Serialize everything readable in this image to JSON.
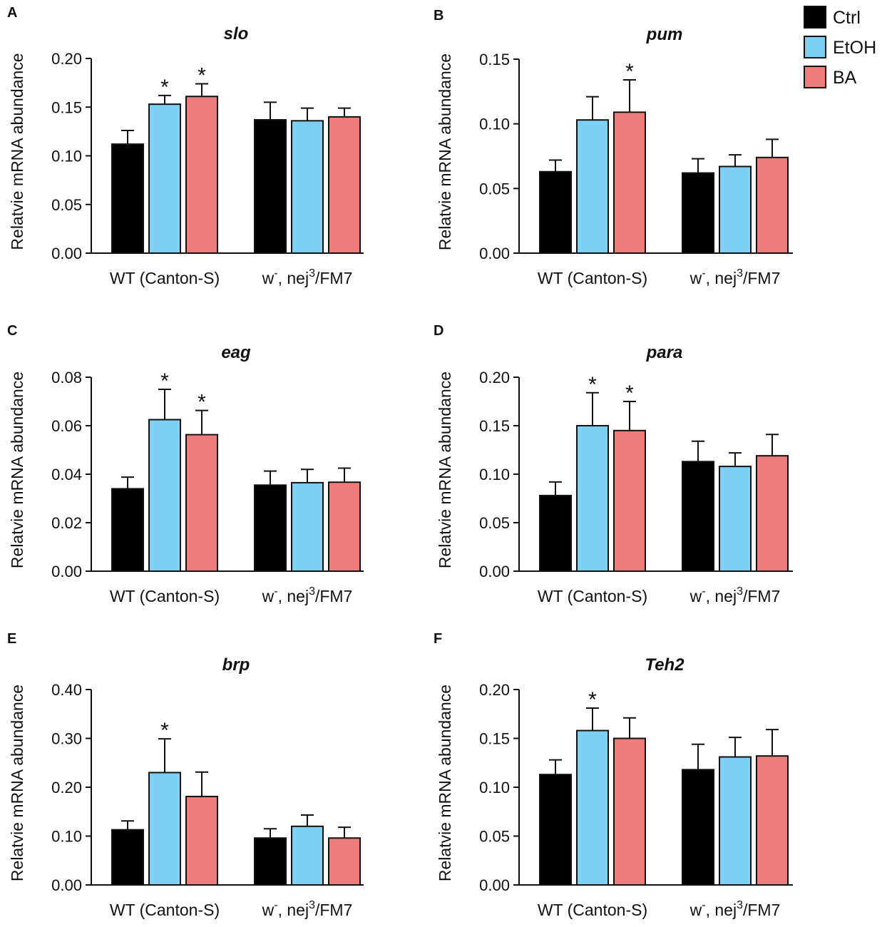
{
  "colors": {
    "Ctrl": "#000000",
    "EtOH": "#7dd0f4",
    "BA": "#f07b7b"
  },
  "legend": [
    {
      "label": "Ctrl",
      "color": "#000000"
    },
    {
      "label": "EtOH",
      "color": "#7dd0f4"
    },
    {
      "label": "BA",
      "color": "#f07b7b"
    }
  ],
  "chart_data": [
    {
      "panel": "A",
      "type": "bar",
      "title": "slo",
      "ylabel": "Relatvie mRNA abundance",
      "ylim": [
        0,
        0.2
      ],
      "yticks": [
        "0.00",
        "0.05",
        "0.10",
        "0.15",
        "0.20"
      ],
      "groups": [
        "WT (Canton-S)",
        "w-, nej3/FM7"
      ],
      "series": [
        {
          "name": "Ctrl",
          "values": [
            0.112,
            0.137
          ],
          "errors": [
            0.014,
            0.018
          ],
          "sig": [
            "",
            ""
          ]
        },
        {
          "name": "EtOH",
          "values": [
            0.153,
            0.136
          ],
          "errors": [
            0.009,
            0.013
          ],
          "sig": [
            "*",
            ""
          ]
        },
        {
          "name": "BA",
          "values": [
            0.161,
            0.14
          ],
          "errors": [
            0.013,
            0.009
          ],
          "sig": [
            "*",
            ""
          ]
        }
      ]
    },
    {
      "panel": "B",
      "type": "bar",
      "title": "pum",
      "ylabel": "Relatvie mRNA abundance",
      "ylim": [
        0,
        0.15
      ],
      "yticks": [
        "0.00",
        "0.05",
        "0.10",
        "0.15"
      ],
      "groups": [
        "WT (Canton-S)",
        "w-, nej3/FM7"
      ],
      "series": [
        {
          "name": "Ctrl",
          "values": [
            0.063,
            0.062
          ],
          "errors": [
            0.009,
            0.011
          ],
          "sig": [
            "",
            ""
          ]
        },
        {
          "name": "EtOH",
          "values": [
            0.103,
            0.067
          ],
          "errors": [
            0.018,
            0.009
          ],
          "sig": [
            "",
            ""
          ]
        },
        {
          "name": "BA",
          "values": [
            0.109,
            0.074
          ],
          "errors": [
            0.025,
            0.014
          ],
          "sig": [
            "*",
            ""
          ]
        }
      ]
    },
    {
      "panel": "C",
      "type": "bar",
      "title": "eag",
      "ylabel": "Relatvie mRNA abundance",
      "ylim": [
        0,
        0.08
      ],
      "yticks": [
        "0.00",
        "0.02",
        "0.04",
        "0.06",
        "0.08"
      ],
      "groups": [
        "WT (Canton-S)",
        "w-, nej3/FM7"
      ],
      "series": [
        {
          "name": "Ctrl",
          "values": [
            0.034,
            0.0355
          ],
          "errors": [
            0.0048,
            0.0058
          ],
          "sig": [
            "",
            ""
          ]
        },
        {
          "name": "EtOH",
          "values": [
            0.0625,
            0.0365
          ],
          "errors": [
            0.0125,
            0.0055
          ],
          "sig": [
            "*",
            ""
          ]
        },
        {
          "name": "BA",
          "values": [
            0.0563,
            0.0367
          ],
          "errors": [
            0.01,
            0.0058
          ],
          "sig": [
            "*",
            ""
          ]
        }
      ]
    },
    {
      "panel": "D",
      "type": "bar",
      "title": "para",
      "ylabel": "Relatvie mRNA abundance",
      "ylim": [
        0,
        0.2
      ],
      "yticks": [
        "0.00",
        "0.05",
        "0.10",
        "0.15",
        "0.20"
      ],
      "groups": [
        "WT (Canton-S)",
        "w-, nej3/FM7"
      ],
      "series": [
        {
          "name": "Ctrl",
          "values": [
            0.078,
            0.113
          ],
          "errors": [
            0.014,
            0.021
          ],
          "sig": [
            "",
            ""
          ]
        },
        {
          "name": "EtOH",
          "values": [
            0.15,
            0.108
          ],
          "errors": [
            0.034,
            0.014
          ],
          "sig": [
            "*",
            ""
          ]
        },
        {
          "name": "BA",
          "values": [
            0.145,
            0.119
          ],
          "errors": [
            0.03,
            0.022
          ],
          "sig": [
            "*",
            ""
          ]
        }
      ]
    },
    {
      "panel": "E",
      "type": "bar",
      "title": "brp",
      "ylabel": "Relatvie mRNA abundance",
      "ylim": [
        0,
        0.4
      ],
      "yticks": [
        "0.00",
        "0.10",
        "0.20",
        "0.30",
        "0.40"
      ],
      "groups": [
        "WT (Canton-S)",
        "w-, nej3/FM7"
      ],
      "series": [
        {
          "name": "Ctrl",
          "values": [
            0.113,
            0.096
          ],
          "errors": [
            0.018,
            0.019
          ],
          "sig": [
            "",
            ""
          ]
        },
        {
          "name": "EtOH",
          "values": [
            0.23,
            0.12
          ],
          "errors": [
            0.069,
            0.023
          ],
          "sig": [
            "*",
            ""
          ]
        },
        {
          "name": "BA",
          "values": [
            0.181,
            0.096
          ],
          "errors": [
            0.05,
            0.022
          ],
          "sig": [
            "",
            ""
          ]
        }
      ]
    },
    {
      "panel": "F",
      "type": "bar",
      "title": "Teh2",
      "ylabel": "Relatvie mRNA abundance",
      "ylim": [
        0,
        0.2
      ],
      "yticks": [
        "0.00",
        "0.05",
        "0.10",
        "0.15",
        "0.20"
      ],
      "groups": [
        "WT (Canton-S)",
        "w-, nej3/FM7"
      ],
      "series": [
        {
          "name": "Ctrl",
          "values": [
            0.113,
            0.118
          ],
          "errors": [
            0.015,
            0.026
          ],
          "sig": [
            "",
            ""
          ]
        },
        {
          "name": "EtOH",
          "values": [
            0.158,
            0.131
          ],
          "errors": [
            0.023,
            0.02
          ],
          "sig": [
            "*",
            ""
          ]
        },
        {
          "name": "BA",
          "values": [
            0.15,
            0.132
          ],
          "errors": [
            0.021,
            0.027
          ],
          "sig": [
            "",
            ""
          ]
        }
      ]
    }
  ]
}
